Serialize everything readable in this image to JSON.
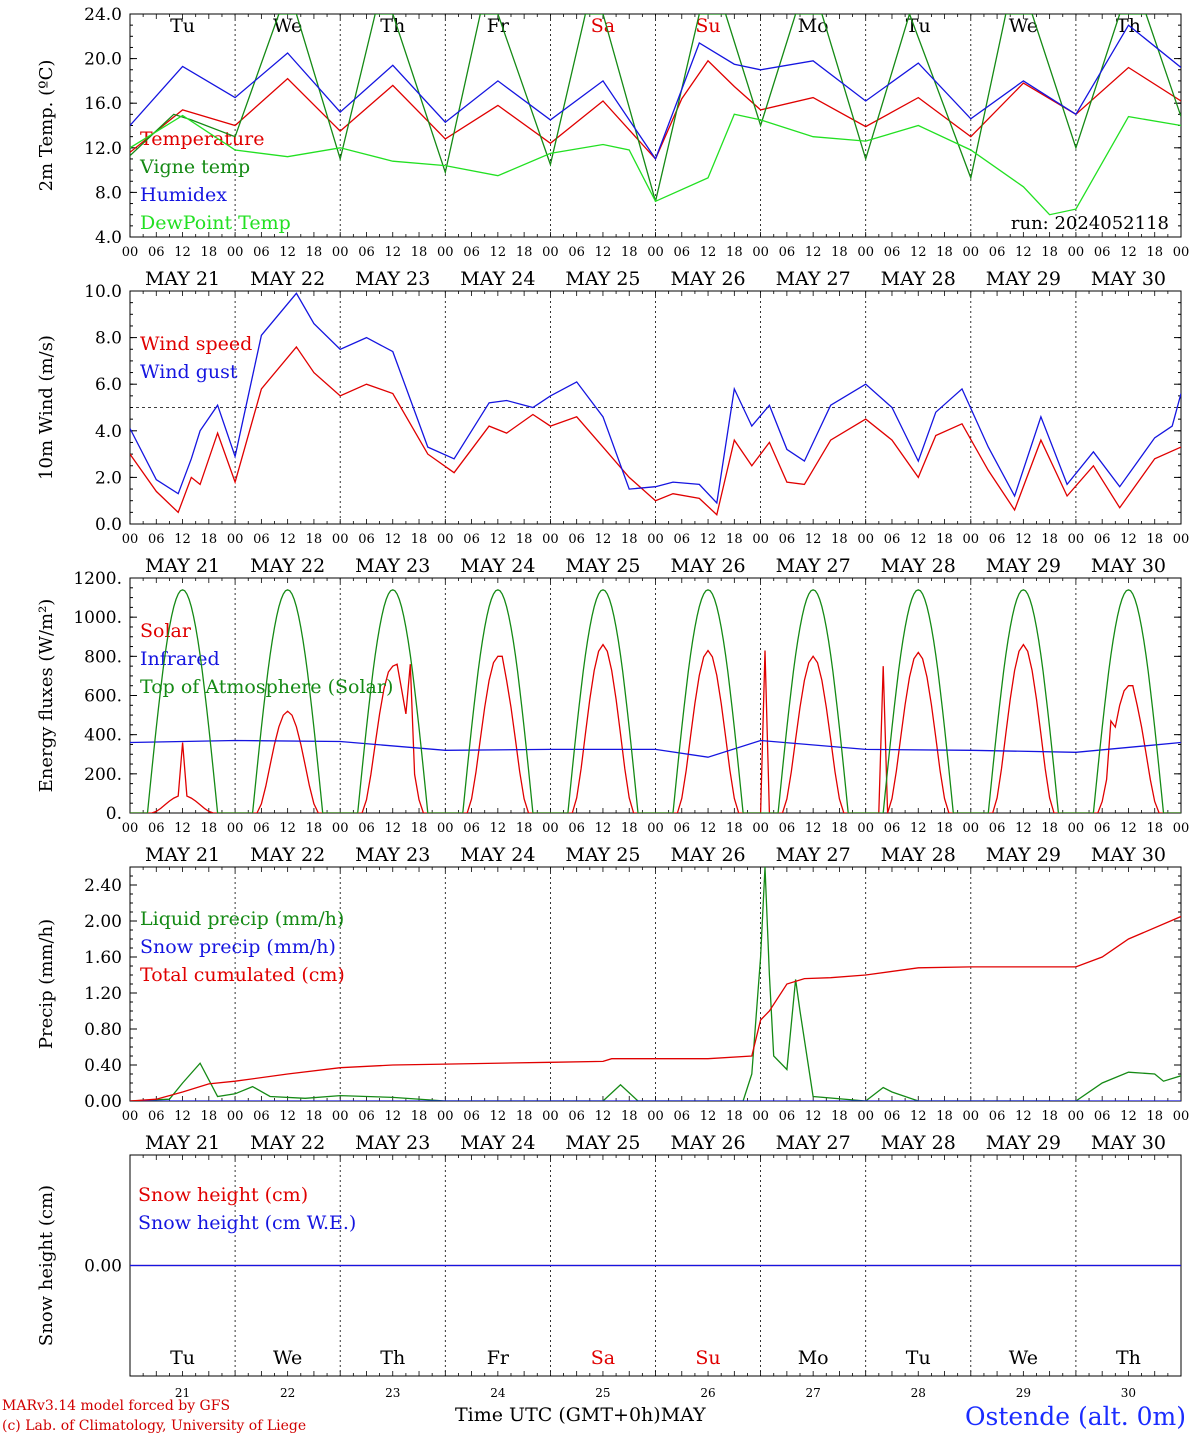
{
  "footer": {
    "model": "MARv3.14 model forced by GFS",
    "credit": "(c) Lab. of Climatology, University of Liege",
    "xaxis_title": "Time UTC (GMT+0h)MAY",
    "station": "Ostende (alt. 0m)"
  },
  "colors": {
    "red": "#e00000",
    "green": "#158a15",
    "blue": "#1515e0",
    "lightgreen": "#22e022",
    "purple": "#800080",
    "weekend": "#e00000"
  },
  "chart_data": [
    {
      "type": "line",
      "ylabel": "2m Temp. (ºC)",
      "ylim": [
        4.0,
        24.0
      ],
      "yticks": [
        "4.0",
        "8.0",
        "12.0",
        "16.0",
        "20.0",
        "24.0"
      ],
      "run": "run: 2024052118",
      "weekday_labels": [
        "Tu",
        "We",
        "Th",
        "Fr",
        "Sa",
        "Su",
        "Mo",
        "Tu",
        "We",
        "Th"
      ],
      "weekend_index": [
        4,
        5
      ],
      "date_labels": [
        "MAY 21",
        "MAY 22",
        "MAY 23",
        "MAY 24",
        "MAY 25",
        "MAY 26",
        "MAY 27",
        "MAY 28",
        "MAY 29",
        "MAY 30"
      ],
      "hour_labels": [
        "00",
        "06",
        "12",
        "18"
      ],
      "series": [
        {
          "name": "Temperature",
          "color": "red",
          "x_hours": [
            0,
            12,
            24,
            36,
            48,
            60,
            72,
            84,
            96,
            108,
            120,
            126,
            132,
            138,
            144,
            156,
            168,
            180,
            192,
            204,
            216,
            228,
            240
          ],
          "values": [
            11.6,
            15.4,
            14.0,
            18.2,
            13.5,
            17.6,
            12.8,
            15.8,
            12.4,
            16.2,
            11.0,
            16.4,
            19.8,
            17.5,
            15.4,
            16.5,
            13.9,
            16.5,
            13.0,
            17.8,
            15.0,
            19.2,
            16.2
          ]
        },
        {
          "name": "Vigne temp",
          "color": "green",
          "x_hours": [
            0,
            10,
            14,
            24,
            34,
            38,
            48,
            56,
            60,
            72,
            80,
            84,
            96,
            104,
            108,
            120,
            130,
            136,
            144,
            152,
            158,
            168,
            178,
            192,
            200,
            206,
            216,
            226,
            232,
            240
          ],
          "values": [
            11.3,
            15.0,
            14.5,
            13.0,
            24.0,
            24.0,
            11.0,
            24.0,
            24.0,
            9.8,
            24.0,
            24.0,
            10.5,
            24.0,
            24.0,
            7.2,
            24.0,
            24.0,
            14.0,
            24.0,
            24.0,
            11.0,
            24.0,
            9.3,
            24.0,
            24.0,
            12.0,
            24.0,
            24.0,
            14.8
          ]
        },
        {
          "name": "Humidex",
          "color": "blue",
          "x_hours": [
            0,
            12,
            24,
            36,
            48,
            60,
            72,
            84,
            96,
            108,
            120,
            130,
            138,
            144,
            156,
            168,
            180,
            192,
            204,
            216,
            228,
            240
          ],
          "values": [
            14.0,
            19.3,
            16.5,
            20.5,
            15.2,
            19.4,
            14.3,
            18.0,
            14.5,
            18.0,
            11.0,
            21.4,
            19.5,
            19.0,
            19.8,
            16.2,
            19.6,
            14.6,
            18.0,
            15.0,
            23.0,
            19.2
          ]
        },
        {
          "name": "DewPoint Temp",
          "color": "lightgreen",
          "x_hours": [
            0,
            12,
            24,
            36,
            48,
            60,
            72,
            84,
            96,
            108,
            114,
            120,
            132,
            138,
            144,
            156,
            168,
            180,
            192,
            204,
            210,
            216,
            228,
            240
          ],
          "values": [
            12.0,
            14.9,
            11.8,
            11.2,
            12.0,
            10.8,
            10.4,
            9.5,
            11.5,
            12.3,
            11.8,
            7.2,
            9.3,
            15.0,
            14.5,
            13.0,
            12.6,
            14.0,
            11.8,
            8.5,
            6.0,
            6.5,
            14.8,
            14.0
          ]
        }
      ]
    },
    {
      "type": "line",
      "ylabel": "10m Wind (m/s)",
      "ylim": [
        0.0,
        10.0
      ],
      "yticks": [
        "0.0",
        "2.0",
        "4.0",
        "6.0",
        "8.0",
        "10.0"
      ],
      "reference_line": 5.0,
      "date_labels": [
        "MAY 21",
        "MAY 22",
        "MAY 23",
        "MAY 24",
        "MAY 25",
        "MAY 26",
        "MAY 27",
        "MAY 28",
        "MAY 29",
        "MAY 30"
      ],
      "hour_labels": [
        "00",
        "06",
        "12",
        "18"
      ],
      "series": [
        {
          "name": "Wind speed",
          "color": "red",
          "x_hours": [
            0,
            6,
            11,
            14,
            16,
            20,
            24,
            30,
            38,
            42,
            48,
            54,
            60,
            68,
            74,
            82,
            86,
            92,
            96,
            102,
            108,
            114,
            120,
            124,
            130,
            134,
            138,
            142,
            146,
            150,
            154,
            160,
            168,
            174,
            180,
            184,
            190,
            196,
            202,
            208,
            214,
            220,
            226,
            234,
            240
          ],
          "values": [
            3.0,
            1.4,
            0.5,
            2.0,
            1.7,
            3.9,
            1.8,
            5.8,
            7.6,
            6.5,
            5.5,
            6.0,
            5.6,
            3.0,
            2.2,
            4.2,
            3.9,
            4.7,
            4.2,
            4.6,
            3.3,
            2.0,
            1.0,
            1.3,
            1.1,
            0.4,
            3.6,
            2.5,
            3.5,
            1.8,
            1.7,
            3.6,
            4.5,
            3.6,
            2.0,
            3.8,
            4.3,
            2.3,
            0.6,
            3.6,
            1.2,
            2.5,
            0.7,
            2.8,
            3.3
          ]
        },
        {
          "name": "Wind gust",
          "color": "blue",
          "x_hours": [
            0,
            6,
            11,
            14,
            16,
            20,
            24,
            30,
            38,
            42,
            48,
            54,
            60,
            68,
            74,
            82,
            86,
            92,
            96,
            102,
            108,
            114,
            120,
            124,
            130,
            134,
            138,
            142,
            146,
            150,
            154,
            160,
            168,
            174,
            180,
            184,
            190,
            196,
            202,
            208,
            214,
            220,
            226,
            234,
            238,
            240
          ],
          "values": [
            4.1,
            1.9,
            1.3,
            2.8,
            4.0,
            5.1,
            2.9,
            8.1,
            9.9,
            8.6,
            7.5,
            8.0,
            7.4,
            3.3,
            2.8,
            5.2,
            5.3,
            5.0,
            5.5,
            6.1,
            4.6,
            1.5,
            1.6,
            1.8,
            1.7,
            0.9,
            5.8,
            4.2,
            5.1,
            3.2,
            2.7,
            5.1,
            6.0,
            5.0,
            2.7,
            4.8,
            5.8,
            3.3,
            1.2,
            4.6,
            1.7,
            3.1,
            1.6,
            3.7,
            4.2,
            5.6
          ]
        }
      ]
    },
    {
      "type": "line",
      "ylabel": "Energy fluxes (W/m²)",
      "ylim": [
        0,
        1200
      ],
      "yticks": [
        "0.",
        "200.",
        "400.",
        "600.",
        "800.",
        "1000.",
        "1200."
      ],
      "date_labels": [
        "MAY 21",
        "MAY 22",
        "MAY 23",
        "MAY 24",
        "MAY 25",
        "MAY 26",
        "MAY 27",
        "MAY 28",
        "MAY 29",
        "MAY 30"
      ],
      "hour_labels": [
        "00",
        "06",
        "12",
        "18"
      ],
      "series": [
        {
          "name": "Solar",
          "color": "red",
          "peaks": [
            90,
            520,
            750,
            800,
            860,
            830,
            800,
            820,
            860,
            650
          ],
          "spikes": [
            [
              12,
              360
            ],
            [
              61,
              760
            ],
            [
              64,
              760
            ],
            [
              85,
              800
            ],
            [
              145,
              830
            ],
            [
              172,
              750
            ],
            [
              224,
              470
            ],
            [
              229,
              650
            ]
          ]
        },
        {
          "name": "Infrared",
          "color": "blue",
          "x_hours": [
            0,
            24,
            48,
            72,
            96,
            120,
            132,
            144,
            168,
            192,
            216,
            240
          ],
          "values": [
            360,
            370,
            365,
            320,
            325,
            325,
            285,
            370,
            325,
            320,
            310,
            360
          ]
        },
        {
          "name": "Top of Atmosphere (Solar)",
          "color": "green",
          "peak": 1140,
          "rise_hour": 4,
          "set_hour": 20
        }
      ]
    },
    {
      "type": "line",
      "ylabel": "Precip (mm/h)",
      "ylim": [
        0.0,
        2.6
      ],
      "yticks": [
        "0.00",
        "0.40",
        "0.80",
        "1.20",
        "1.60",
        "2.00",
        "2.40"
      ],
      "date_labels": [
        "MAY 21",
        "MAY 22",
        "MAY 23",
        "MAY 24",
        "MAY 25",
        "MAY 26",
        "MAY 27",
        "MAY 28",
        "MAY 29",
        "MAY 30"
      ],
      "hour_labels": [
        "00",
        "06",
        "12",
        "18"
      ],
      "series": [
        {
          "name": "Liquid precip (mm/h)",
          "color": "green",
          "x_hours": [
            0,
            9,
            12,
            16,
            20,
            24,
            28,
            32,
            40,
            48,
            60,
            72,
            96,
            108,
            112,
            116,
            140,
            142,
            144,
            145,
            146,
            147,
            150,
            152,
            153,
            156,
            168,
            172,
            174,
            180,
            192,
            216,
            222,
            228,
            234,
            236,
            240
          ],
          "values": [
            0,
            0.02,
            0.2,
            0.42,
            0.05,
            0.08,
            0.16,
            0.05,
            0.03,
            0.06,
            0.04,
            0.0,
            0.0,
            0.0,
            0.18,
            0.0,
            0.0,
            0.3,
            1.6,
            2.6,
            1.4,
            0.5,
            0.35,
            1.35,
            1.0,
            0.05,
            0.0,
            0.15,
            0.1,
            0.0,
            0.0,
            0.0,
            0.2,
            0.32,
            0.3,
            0.22,
            0.28
          ]
        },
        {
          "name": "Snow precip (mm/h)",
          "color": "blue",
          "x_hours": [
            0,
            240
          ],
          "values": [
            0,
            0
          ]
        },
        {
          "name": "Total cumulated (cm)",
          "color": "red",
          "x_hours": [
            0,
            6,
            12,
            18,
            24,
            36,
            48,
            60,
            72,
            96,
            108,
            110,
            120,
            132,
            142,
            144,
            146,
            150,
            154,
            160,
            168,
            180,
            192,
            216,
            222,
            228,
            240
          ],
          "values": [
            0,
            0.02,
            0.1,
            0.19,
            0.22,
            0.3,
            0.37,
            0.4,
            0.41,
            0.43,
            0.44,
            0.47,
            0.47,
            0.47,
            0.5,
            0.9,
            1.0,
            1.3,
            1.36,
            1.37,
            1.4,
            1.48,
            1.49,
            1.49,
            1.6,
            1.8,
            2.05
          ]
        }
      ]
    },
    {
      "type": "line",
      "ylabel": "Snow height (cm)",
      "ylim": [
        -1,
        1
      ],
      "yticks": [
        "0.00"
      ],
      "weekday_labels": [
        "Tu",
        "We",
        "Th",
        "Fr",
        "Sa",
        "Su",
        "Mo",
        "Tu",
        "We",
        "Th"
      ],
      "weekend_index": [
        4,
        5
      ],
      "day_numbers": [
        "21",
        "22",
        "23",
        "24",
        "25",
        "26",
        "27",
        "28",
        "29",
        "30"
      ],
      "series": [
        {
          "name": "Snow height (cm)",
          "color": "red",
          "x_hours": [
            0,
            240
          ],
          "values": [
            0,
            0
          ]
        },
        {
          "name": "Snow height (cm W.E.)",
          "color": "blue",
          "x_hours": [
            0,
            240
          ],
          "values": [
            0,
            0
          ]
        }
      ]
    }
  ]
}
